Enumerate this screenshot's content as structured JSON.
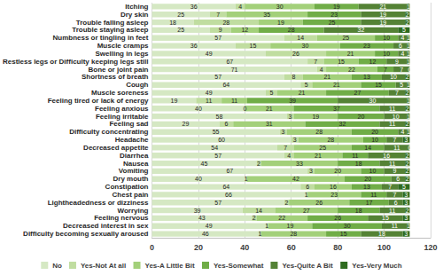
{
  "chart_data": {
    "type": "bar",
    "orientation": "horizontal",
    "stacked": true,
    "data_labels": true,
    "grid": true,
    "legend": "bottom",
    "categories": [
      "Itching",
      "Dry skin",
      "Trouble falling asleep",
      "Trouble staying asleep",
      "Numbness or tingling in feet",
      "Muscle cramps",
      "Swelling in legs",
      "Restless legs or Difficulty keeping legs still",
      "Bone or joint pain",
      "Shortness of breath",
      "Cough",
      "Muscle soreness",
      "Feeling tired or lack of energy",
      "Feeling anxious",
      "Feeling irritable",
      "Feeling sad",
      "Difficulty concentrating",
      "Headache",
      "Decreased appetite",
      "Diarrhea",
      "Nausea",
      "Vomiting",
      "Dry mouth",
      "Constipation",
      "Chest pain",
      "Lightheadedness or dizziness",
      "Worrying",
      "Feeling nervous",
      "Decreased interest in sex",
      "Difficulty becoming sexually aroused"
    ],
    "series": [
      {
        "name": "No",
        "color": "#d5e8c3",
        "values": [
          36,
          25,
          18,
          25,
          57,
          36,
          49,
          67,
          71,
          57,
          64,
          49,
          19,
          40,
          58,
          29,
          55,
          60,
          54,
          57,
          45,
          67,
          40,
          64,
          66,
          57,
          39,
          43,
          49,
          46
        ]
      },
      {
        "name": "Yes-Not At all",
        "color": "#c0dda0",
        "values": [
          4,
          7,
          28,
          9,
          14,
          15,
          26,
          7,
          4,
          8,
          5,
          5,
          11,
          0,
          3,
          6,
          3,
          3,
          7,
          4,
          2,
          3,
          1,
          6,
          1,
          2,
          14,
          2,
          1,
          1
        ]
      },
      {
        "name": "Yes-A Little Bit",
        "color": "#a3d07a",
        "values": [
          30,
          35,
          19,
          12,
          25,
          30,
          21,
          15,
          22,
          21,
          21,
          21,
          11,
          21,
          19,
          31,
          28,
          28,
          25,
          21,
          33,
          20,
          42,
          16,
          23,
          26,
          27,
          22,
          19,
          28
        ]
      },
      {
        "name": "Yes-Somewhat",
        "color": "#70ad47",
        "values": [
          19,
          23,
          25,
          28,
          10,
          23,
          10,
          12,
          7,
          13,
          15,
          27,
          39,
          37,
          20,
          32,
          20,
          10,
          14,
          11,
          18,
          10,
          20,
          13,
          11,
          17,
          18,
          26,
          30,
          15
        ]
      },
      {
        "name": "Yes-Quite A Bit",
        "color": "#548235",
        "values": [
          21,
          19,
          19,
          32,
          4,
          6,
          4,
          9,
          7,
          10,
          5,
          7,
          30,
          11,
          10,
          11,
          4,
          7,
          11,
          16,
          11,
          9,
          6,
          7,
          7,
          6,
          11,
          15,
          11,
          18
        ]
      },
      {
        "name": "Yes-Very Much",
        "color": "#2e6b1f",
        "values": [
          1,
          2,
          2,
          5,
          1,
          1,
          1,
          1,
          0,
          2,
          1,
          2,
          1,
          2,
          1,
          2,
          1,
          3,
          0,
          2,
          2,
          2,
          2,
          5,
          3,
          3,
          2,
          3,
          1,
          3
        ]
      }
    ],
    "xlim": [
      0,
      120
    ],
    "xticks": [
      0,
      20,
      40,
      60,
      80,
      100,
      120
    ]
  }
}
